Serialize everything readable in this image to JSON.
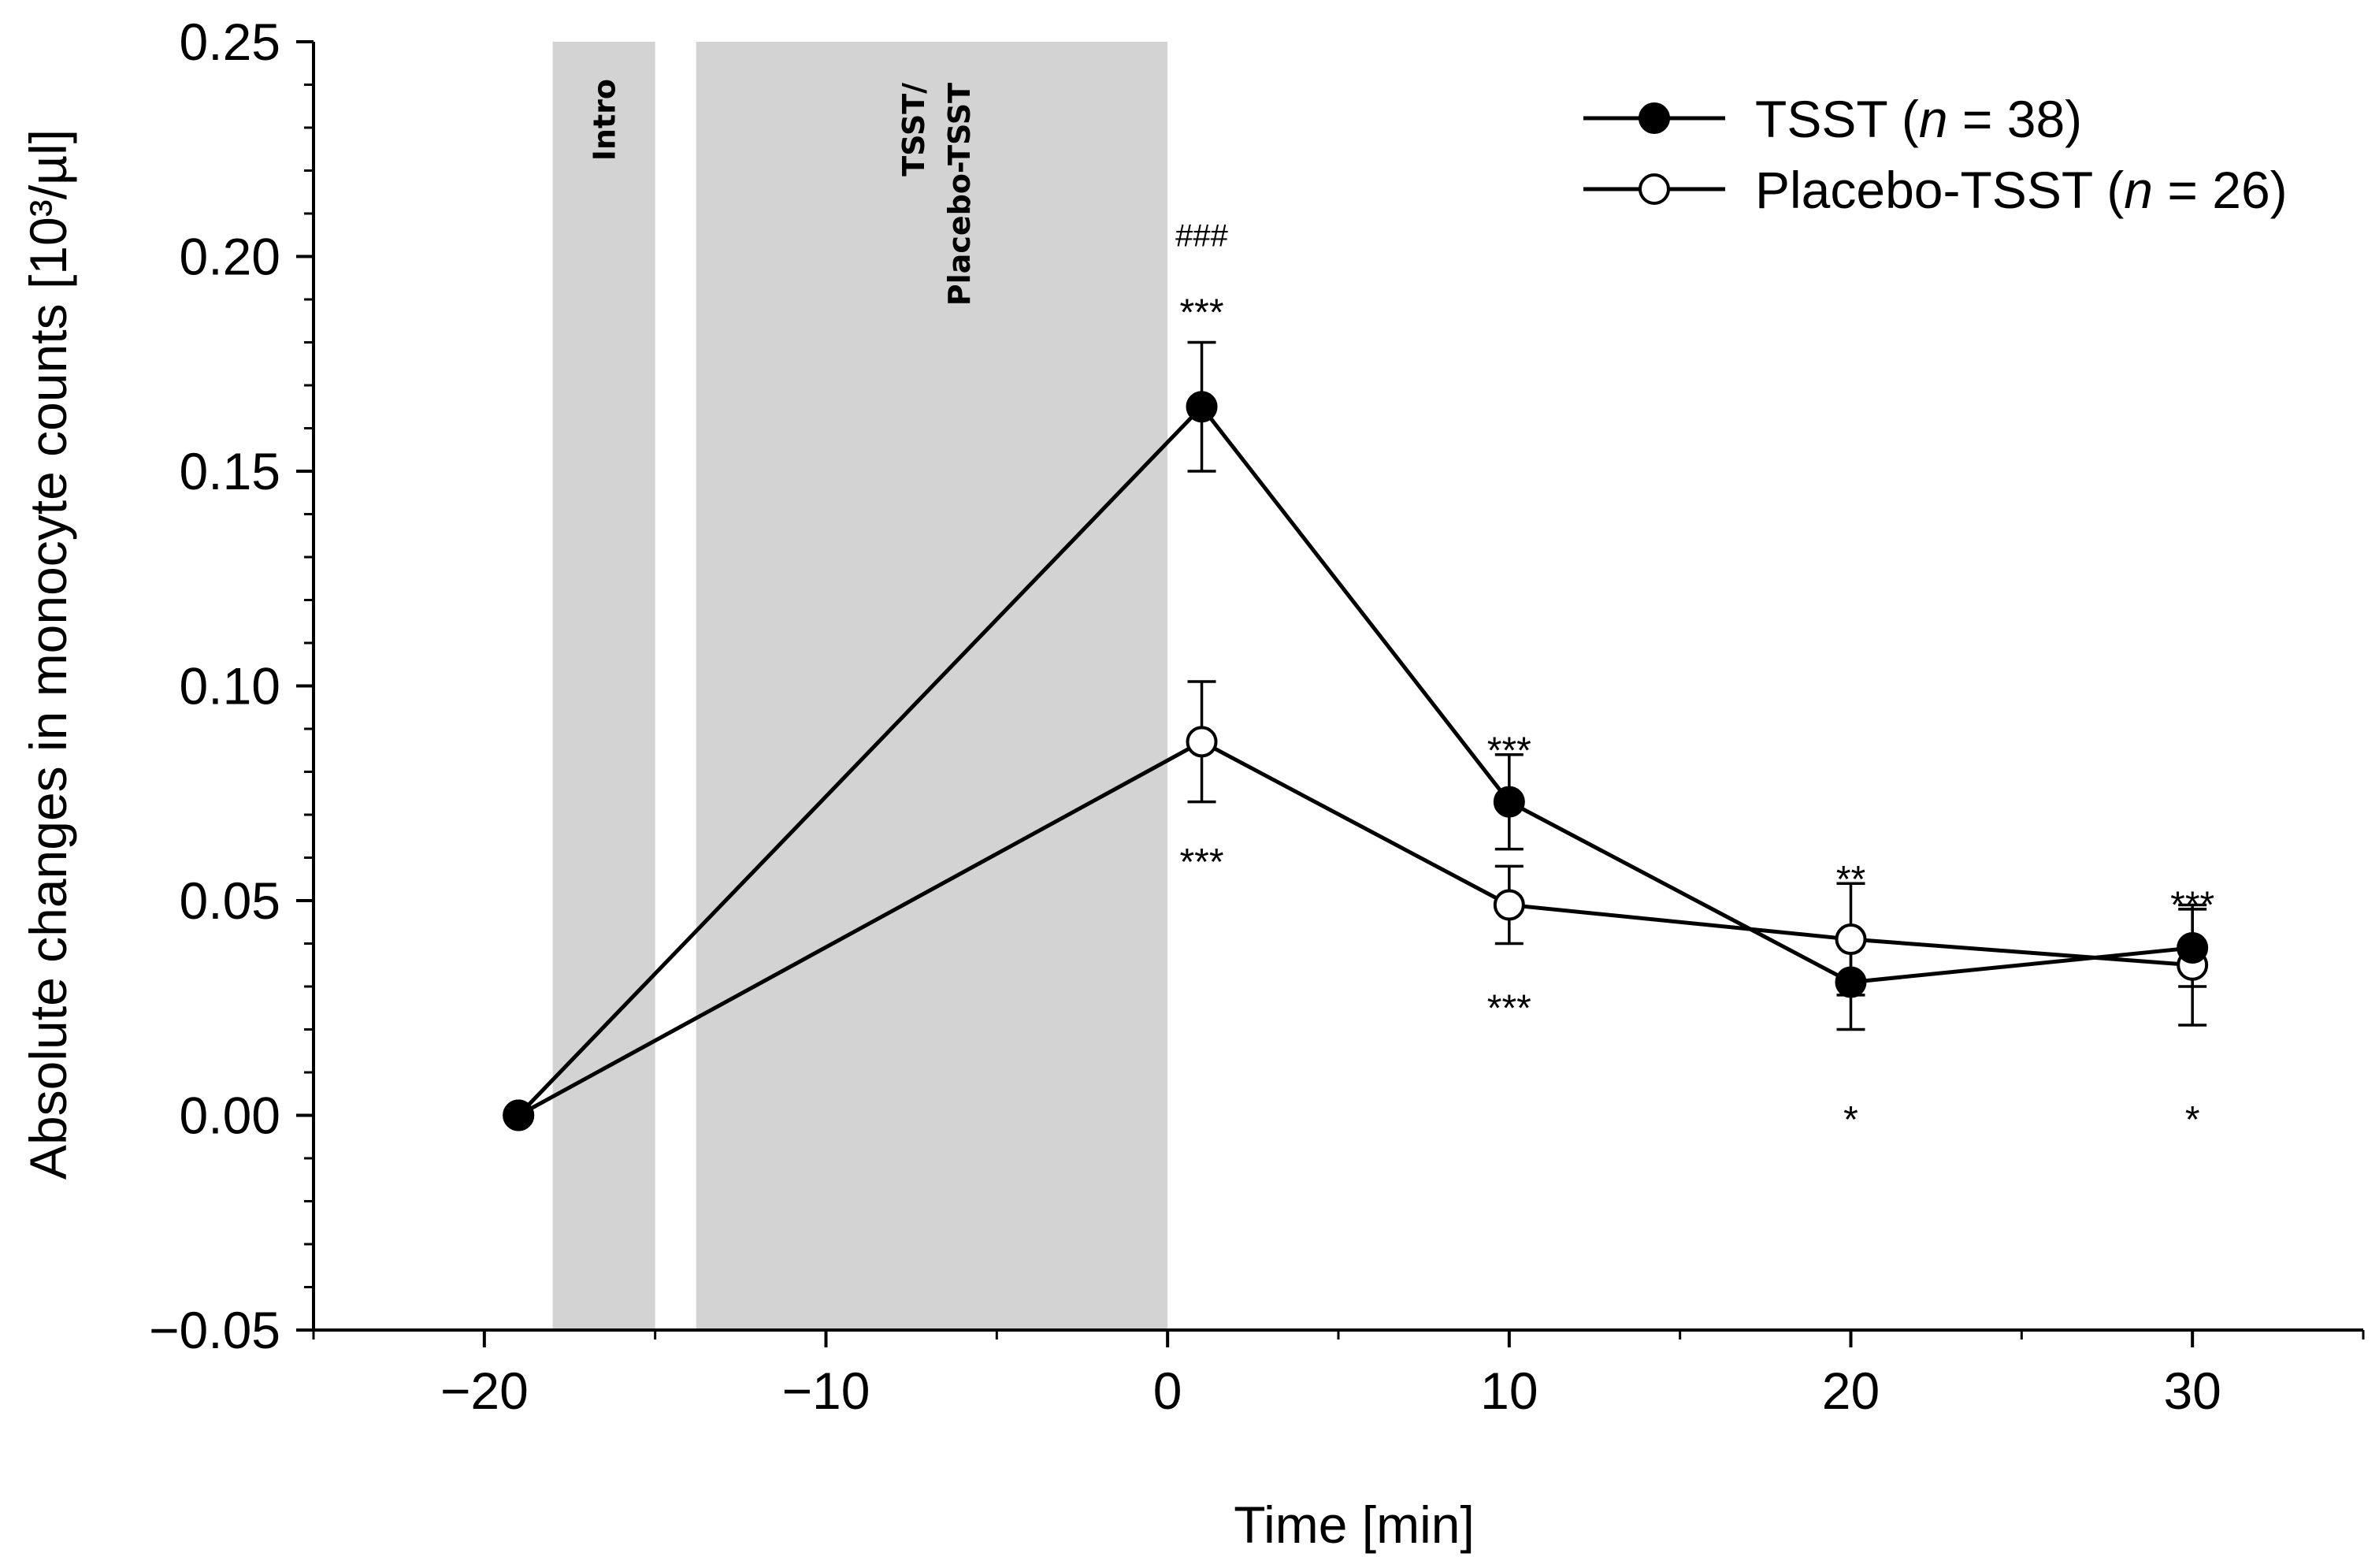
{
  "chart_data": {
    "type": "line",
    "title": "",
    "xlabel": "Time [min]",
    "ylabel": "Absolute changes in monocyte counts [10³/µl]",
    "xlim": [
      -25,
      35
    ],
    "ylim": [
      -0.05,
      0.25
    ],
    "x_ticks": [
      -20,
      -10,
      0,
      10,
      20,
      30
    ],
    "x_tick_labels": [
      "−20",
      "−10",
      "0",
      "10",
      "20",
      "30"
    ],
    "y_ticks": [
      -0.05,
      0.0,
      0.05,
      0.1,
      0.15,
      0.2,
      0.25
    ],
    "y_tick_labels": [
      "−0.05",
      "0.00",
      "0.05",
      "0.10",
      "0.15",
      "0.20",
      "0.25"
    ],
    "grid": false,
    "legend_position": "top-right",
    "shaded_phases": [
      {
        "label": "Intro",
        "x_start": -18,
        "x_end": -15
      },
      {
        "label": "TSST/",
        "label2": "Placebo-TSST",
        "x_start": -13.8,
        "x_end": 0
      }
    ],
    "series": [
      {
        "name": "TSST",
        "legend_suffix": "n = 38",
        "marker": "filled-circle",
        "color": "#000000",
        "x": [
          -19,
          1,
          10,
          20,
          30
        ],
        "y": [
          0.0,
          0.165,
          0.073,
          0.031,
          0.039
        ],
        "error": [
          0.0,
          0.015,
          0.011,
          0.011,
          0.009
        ]
      },
      {
        "name": "Placebo-TSST",
        "legend_suffix": "n = 26",
        "marker": "open-circle",
        "color": "#000000",
        "x": [
          -19,
          1,
          10,
          20,
          30
        ],
        "y": [
          0.0,
          0.087,
          0.049,
          0.041,
          0.035
        ],
        "error": [
          0.0,
          0.014,
          0.009,
          0.013,
          0.014
        ]
      }
    ],
    "annotations": [
      {
        "text": "###",
        "x": 1,
        "y": 0.205
      },
      {
        "text": "***",
        "x": 1,
        "y": 0.191
      },
      {
        "text": "***",
        "x": 10,
        "y": 0.089
      },
      {
        "text": "**",
        "x": 20,
        "y": 0.059
      },
      {
        "text": "***",
        "x": 30,
        "y": 0.053
      },
      {
        "text": "***",
        "x": 1,
        "y": 0.063
      },
      {
        "text": "***",
        "x": 10,
        "y": 0.029
      },
      {
        "text": "*",
        "x": 20,
        "y": 0.003
      },
      {
        "text": "*",
        "x": 30,
        "y": 0.003
      }
    ]
  }
}
